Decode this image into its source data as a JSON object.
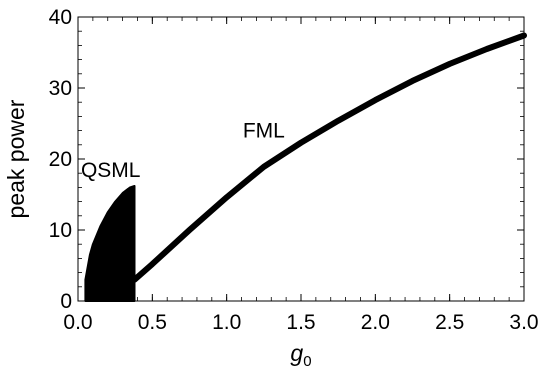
{
  "chart_data": {
    "type": "scatter",
    "title": "",
    "xlabel": "g",
    "xlabel_subscript": "0",
    "ylabel": "peak power",
    "xlim": [
      0,
      3.0
    ],
    "ylim": [
      0,
      40
    ],
    "xticks": [
      "0.0",
      "0.5",
      "1.0",
      "1.5",
      "2.0",
      "2.5",
      "3.0"
    ],
    "yticks": [
      "0",
      "10",
      "20",
      "30",
      "40"
    ],
    "grid": false,
    "annotations": [
      {
        "text": "QSML",
        "x": 0.22,
        "y": 17.5
      },
      {
        "text": "FML",
        "x": 1.25,
        "y": 23.0
      }
    ],
    "series": [
      {
        "regime": "QSML",
        "g0_range": [
          0.05,
          0.38
        ],
        "upper_envelope": {
          "x": [
            0.05,
            0.08,
            0.1,
            0.15,
            0.2,
            0.25,
            0.3,
            0.35,
            0.38
          ],
          "y": [
            3.0,
            6.5,
            8.0,
            10.5,
            12.5,
            14.0,
            15.2,
            16.0,
            16.2
          ]
        },
        "lower_envelope": {
          "x": [
            0.05,
            0.38
          ],
          "y": [
            0.0,
            0.0
          ]
        }
      },
      {
        "regime": "FML",
        "x": [
          0.38,
          0.5,
          0.75,
          1.0,
          1.25,
          1.5,
          1.75,
          2.0,
          2.25,
          2.5,
          2.75,
          3.0
        ],
        "y": [
          3.0,
          5.2,
          10.0,
          14.6,
          18.9,
          22.3,
          25.4,
          28.3,
          31.0,
          33.4,
          35.5,
          37.4
        ]
      }
    ],
    "colors": {
      "data": "#000000",
      "axis": "#000000",
      "background": "#ffffff"
    }
  }
}
